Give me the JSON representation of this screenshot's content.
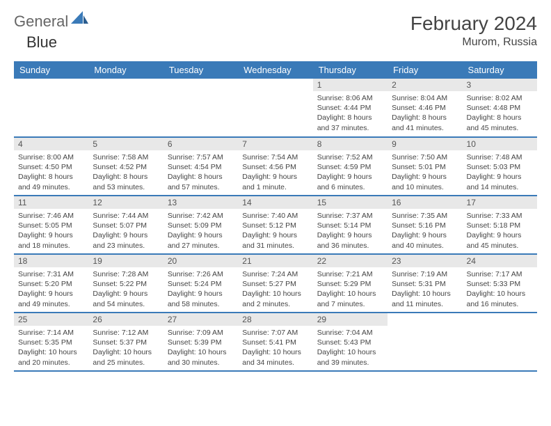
{
  "brand": {
    "part1": "General",
    "part2": "Blue"
  },
  "title": "February 2024",
  "location": "Murom, Russia",
  "accent_color": "#3a7ab8",
  "daynum_bg": "#e8e8e8",
  "text_color": "#444444",
  "dayHeaders": [
    "Sunday",
    "Monday",
    "Tuesday",
    "Wednesday",
    "Thursday",
    "Friday",
    "Saturday"
  ],
  "weeks": [
    [
      {
        "n": "",
        "sr": "",
        "ss": "",
        "dl": ""
      },
      {
        "n": "",
        "sr": "",
        "ss": "",
        "dl": ""
      },
      {
        "n": "",
        "sr": "",
        "ss": "",
        "dl": ""
      },
      {
        "n": "",
        "sr": "",
        "ss": "",
        "dl": ""
      },
      {
        "n": "1",
        "sr": "Sunrise: 8:06 AM",
        "ss": "Sunset: 4:44 PM",
        "dl": "Daylight: 8 hours and 37 minutes."
      },
      {
        "n": "2",
        "sr": "Sunrise: 8:04 AM",
        "ss": "Sunset: 4:46 PM",
        "dl": "Daylight: 8 hours and 41 minutes."
      },
      {
        "n": "3",
        "sr": "Sunrise: 8:02 AM",
        "ss": "Sunset: 4:48 PM",
        "dl": "Daylight: 8 hours and 45 minutes."
      }
    ],
    [
      {
        "n": "4",
        "sr": "Sunrise: 8:00 AM",
        "ss": "Sunset: 4:50 PM",
        "dl": "Daylight: 8 hours and 49 minutes."
      },
      {
        "n": "5",
        "sr": "Sunrise: 7:58 AM",
        "ss": "Sunset: 4:52 PM",
        "dl": "Daylight: 8 hours and 53 minutes."
      },
      {
        "n": "6",
        "sr": "Sunrise: 7:57 AM",
        "ss": "Sunset: 4:54 PM",
        "dl": "Daylight: 8 hours and 57 minutes."
      },
      {
        "n": "7",
        "sr": "Sunrise: 7:54 AM",
        "ss": "Sunset: 4:56 PM",
        "dl": "Daylight: 9 hours and 1 minute."
      },
      {
        "n": "8",
        "sr": "Sunrise: 7:52 AM",
        "ss": "Sunset: 4:59 PM",
        "dl": "Daylight: 9 hours and 6 minutes."
      },
      {
        "n": "9",
        "sr": "Sunrise: 7:50 AM",
        "ss": "Sunset: 5:01 PM",
        "dl": "Daylight: 9 hours and 10 minutes."
      },
      {
        "n": "10",
        "sr": "Sunrise: 7:48 AM",
        "ss": "Sunset: 5:03 PM",
        "dl": "Daylight: 9 hours and 14 minutes."
      }
    ],
    [
      {
        "n": "11",
        "sr": "Sunrise: 7:46 AM",
        "ss": "Sunset: 5:05 PM",
        "dl": "Daylight: 9 hours and 18 minutes."
      },
      {
        "n": "12",
        "sr": "Sunrise: 7:44 AM",
        "ss": "Sunset: 5:07 PM",
        "dl": "Daylight: 9 hours and 23 minutes."
      },
      {
        "n": "13",
        "sr": "Sunrise: 7:42 AM",
        "ss": "Sunset: 5:09 PM",
        "dl": "Daylight: 9 hours and 27 minutes."
      },
      {
        "n": "14",
        "sr": "Sunrise: 7:40 AM",
        "ss": "Sunset: 5:12 PM",
        "dl": "Daylight: 9 hours and 31 minutes."
      },
      {
        "n": "15",
        "sr": "Sunrise: 7:37 AM",
        "ss": "Sunset: 5:14 PM",
        "dl": "Daylight: 9 hours and 36 minutes."
      },
      {
        "n": "16",
        "sr": "Sunrise: 7:35 AM",
        "ss": "Sunset: 5:16 PM",
        "dl": "Daylight: 9 hours and 40 minutes."
      },
      {
        "n": "17",
        "sr": "Sunrise: 7:33 AM",
        "ss": "Sunset: 5:18 PM",
        "dl": "Daylight: 9 hours and 45 minutes."
      }
    ],
    [
      {
        "n": "18",
        "sr": "Sunrise: 7:31 AM",
        "ss": "Sunset: 5:20 PM",
        "dl": "Daylight: 9 hours and 49 minutes."
      },
      {
        "n": "19",
        "sr": "Sunrise: 7:28 AM",
        "ss": "Sunset: 5:22 PM",
        "dl": "Daylight: 9 hours and 54 minutes."
      },
      {
        "n": "20",
        "sr": "Sunrise: 7:26 AM",
        "ss": "Sunset: 5:24 PM",
        "dl": "Daylight: 9 hours and 58 minutes."
      },
      {
        "n": "21",
        "sr": "Sunrise: 7:24 AM",
        "ss": "Sunset: 5:27 PM",
        "dl": "Daylight: 10 hours and 2 minutes."
      },
      {
        "n": "22",
        "sr": "Sunrise: 7:21 AM",
        "ss": "Sunset: 5:29 PM",
        "dl": "Daylight: 10 hours and 7 minutes."
      },
      {
        "n": "23",
        "sr": "Sunrise: 7:19 AM",
        "ss": "Sunset: 5:31 PM",
        "dl": "Daylight: 10 hours and 11 minutes."
      },
      {
        "n": "24",
        "sr": "Sunrise: 7:17 AM",
        "ss": "Sunset: 5:33 PM",
        "dl": "Daylight: 10 hours and 16 minutes."
      }
    ],
    [
      {
        "n": "25",
        "sr": "Sunrise: 7:14 AM",
        "ss": "Sunset: 5:35 PM",
        "dl": "Daylight: 10 hours and 20 minutes."
      },
      {
        "n": "26",
        "sr": "Sunrise: 7:12 AM",
        "ss": "Sunset: 5:37 PM",
        "dl": "Daylight: 10 hours and 25 minutes."
      },
      {
        "n": "27",
        "sr": "Sunrise: 7:09 AM",
        "ss": "Sunset: 5:39 PM",
        "dl": "Daylight: 10 hours and 30 minutes."
      },
      {
        "n": "28",
        "sr": "Sunrise: 7:07 AM",
        "ss": "Sunset: 5:41 PM",
        "dl": "Daylight: 10 hours and 34 minutes."
      },
      {
        "n": "29",
        "sr": "Sunrise: 7:04 AM",
        "ss": "Sunset: 5:43 PM",
        "dl": "Daylight: 10 hours and 39 minutes."
      },
      {
        "n": "",
        "sr": "",
        "ss": "",
        "dl": ""
      },
      {
        "n": "",
        "sr": "",
        "ss": "",
        "dl": ""
      }
    ]
  ]
}
